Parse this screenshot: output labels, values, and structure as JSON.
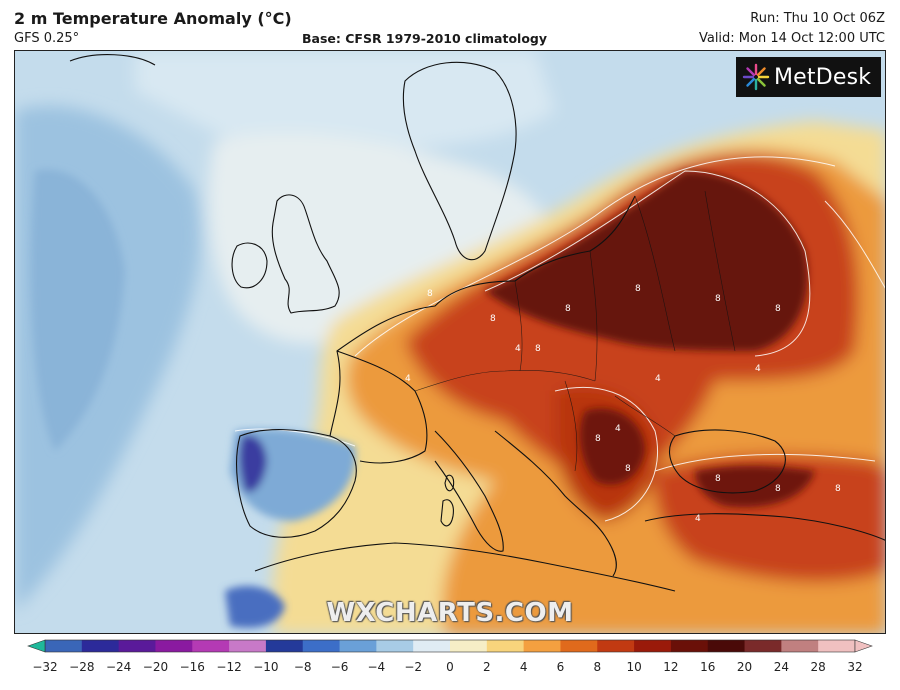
{
  "header": {
    "title": "2 m Temperature Anomaly (°C)",
    "model": "GFS 0.25°",
    "base": "Base: CFSR 1979-2010 climatology",
    "run": "Run: Thu 10 Oct 06Z",
    "valid": "Valid: Mon 14 Oct 12:00 UTC"
  },
  "logo": {
    "text": "MetDesk",
    "icon": "starburst-logo-icon"
  },
  "watermark": "WXCHARTS.COM",
  "colorbar": {
    "ticks": [
      "−32",
      "−28",
      "−24",
      "−20",
      "−16",
      "−12",
      "−10",
      "−8",
      "−6",
      "−4",
      "−2",
      "0",
      "2",
      "4",
      "6",
      "8",
      "10",
      "12",
      "16",
      "20",
      "24",
      "28",
      "32"
    ],
    "colors": [
      "#1fb89a",
      "#3a66b8",
      "#2c2a9a",
      "#5a1a9a",
      "#8a1aa0",
      "#b43ab4",
      "#c879c8",
      "#243a9a",
      "#3c6ec8",
      "#6aa0d8",
      "#a8cce6",
      "#e0ecf4",
      "#f6eec6",
      "#f8d47c",
      "#f4a040",
      "#e06a1c",
      "#c23a12",
      "#9a1a0a",
      "#6a1008",
      "#4a0a08",
      "#7a2a2a",
      "#c08080",
      "#f0c0c0"
    ]
  },
  "contour_labels": [
    "8",
    "8",
    "8",
    "8",
    "8",
    "8",
    "8",
    "8",
    "8",
    "8",
    "8",
    "8",
    "4",
    "4",
    "4",
    "4",
    "4",
    "4"
  ],
  "colors": {
    "ocean_cold": "#b8d4e8",
    "cold_anomaly": "#5a8cc8",
    "very_cold": "#2a3a9a",
    "neutral": "#eef0e0",
    "warm": "#f6d88a",
    "hot": "#e88a2a",
    "very_hot": "#c0340e",
    "extreme": "#5a1008"
  }
}
